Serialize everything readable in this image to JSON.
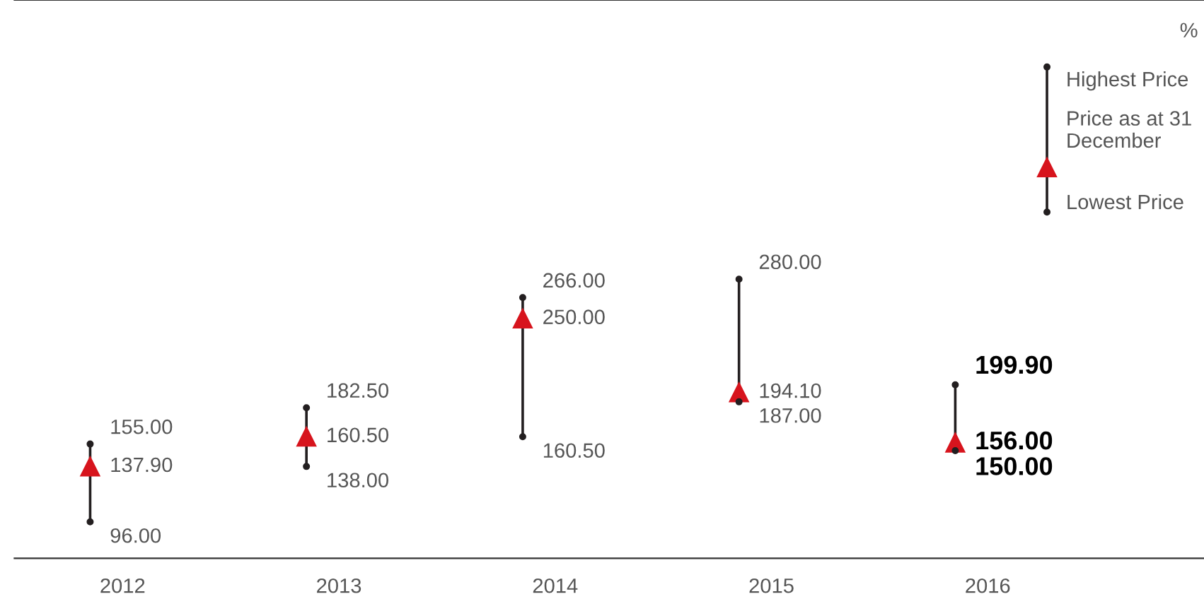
{
  "chart_data": {
    "type": "scatter",
    "categories": [
      "2012",
      "2013",
      "2014",
      "2015",
      "2016"
    ],
    "series": [
      {
        "name": "Highest Price",
        "color": "#231f20",
        "marker": "circle",
        "values": [
          155.0,
          182.5,
          266.0,
          280.0,
          199.9
        ],
        "value_labels": [
          "155.00",
          "182.50",
          "266.00",
          "280.00",
          "199.90"
        ]
      },
      {
        "name": "Price as at 31 December",
        "color": "#d7141d",
        "marker": "triangle",
        "values": [
          137.9,
          160.5,
          250.0,
          194.1,
          156.0
        ],
        "value_labels": [
          "137.90",
          "160.50",
          "250.00",
          "194.10",
          "156.00"
        ]
      },
      {
        "name": "Lowest Price",
        "color": "#231f20",
        "marker": "circle",
        "values": [
          96.0,
          138.0,
          160.5,
          187.0,
          150.0
        ],
        "value_labels": [
          "96.00",
          "138.00",
          "160.50",
          "187.00",
          "150.00"
        ]
      }
    ],
    "legend": "top right",
    "annotations": [
      "%"
    ]
  }
}
